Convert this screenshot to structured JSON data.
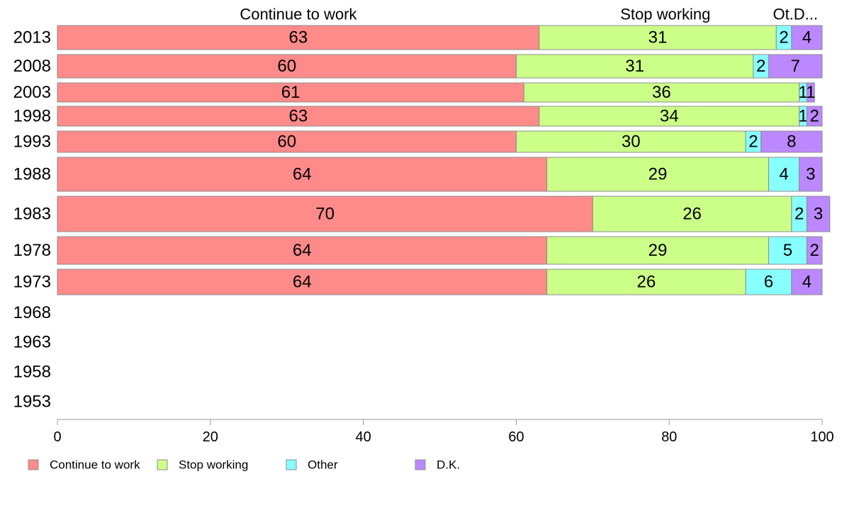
{
  "chart_data": {
    "type": "bar",
    "orientation": "horizontal",
    "stacked": true,
    "column_headers": [
      "Continue to work",
      "Stop working",
      "Ot.D..."
    ],
    "categories": [
      "2013",
      "2008",
      "2003",
      "1998",
      "1993",
      "1988",
      "1983",
      "1978",
      "1973",
      "1968",
      "1963",
      "1958",
      "1953"
    ],
    "series": [
      {
        "name": "Continue to work",
        "color": "#ff8a8a",
        "values": [
          63,
          60,
          61,
          63,
          60,
          64,
          70,
          64,
          64,
          null,
          null,
          null,
          null
        ]
      },
      {
        "name": "Stop working",
        "color": "#ccff88",
        "values": [
          31,
          31,
          36,
          34,
          30,
          29,
          26,
          29,
          26,
          null,
          null,
          null,
          null
        ]
      },
      {
        "name": "Other",
        "color": "#88ffff",
        "values": [
          2,
          2,
          1,
          1,
          2,
          4,
          2,
          5,
          6,
          null,
          null,
          null,
          null
        ]
      },
      {
        "name": "D.K.",
        "color": "#bb88ff",
        "values": [
          4,
          7,
          1,
          2,
          8,
          3,
          3,
          2,
          4,
          null,
          null,
          null,
          null
        ]
      }
    ],
    "xlim": [
      0,
      100
    ],
    "xticks": [
      0,
      20,
      40,
      60,
      80,
      100
    ],
    "legend_position": "bottom-left",
    "grid": false
  }
}
